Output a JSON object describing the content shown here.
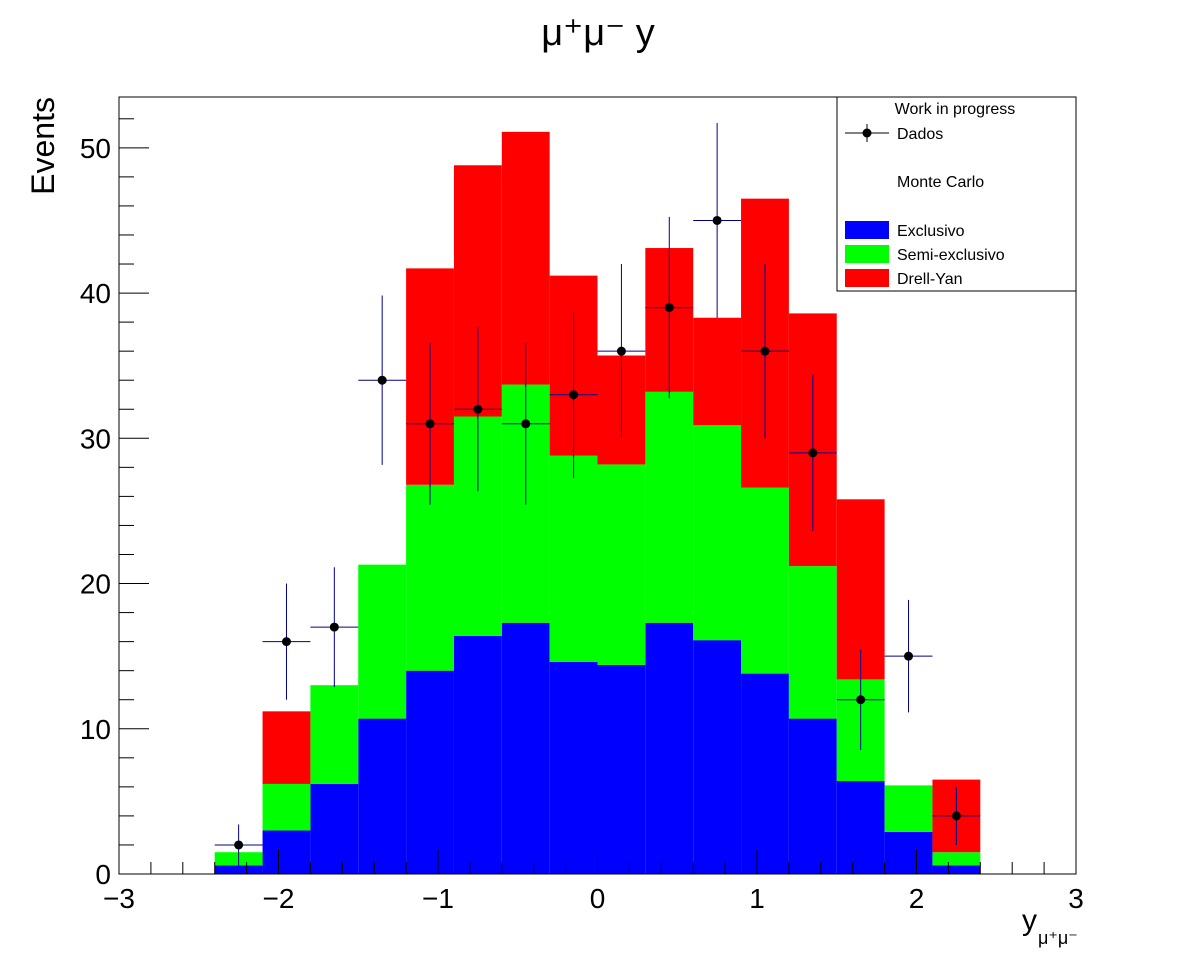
{
  "chart_data": {
    "type": "bar",
    "title": "μ⁺μ⁻ y",
    "xlabel": "y",
    "xlabel_subscript": "μ⁺μ⁻",
    "ylabel": "Events",
    "xlim": [
      -3,
      3
    ],
    "ylim": [
      0,
      53.5
    ],
    "x_ticks": [
      "−3",
      "−2",
      "−1",
      "0",
      "1",
      "2",
      "3"
    ],
    "y_ticks": [
      "0",
      "10",
      "20",
      "30",
      "40",
      "50"
    ],
    "bin_edges": [
      -2.4,
      -2.1,
      -1.8,
      -1.5,
      -1.2,
      -0.9,
      -0.6,
      -0.3,
      0.0,
      0.3,
      0.6,
      0.9,
      1.2,
      1.5,
      1.8,
      2.1,
      2.4
    ],
    "stacked": true,
    "series": [
      {
        "name": "Exclusivo",
        "color": "#0000ff",
        "values": [
          0.6,
          3.0,
          6.2,
          10.7,
          14.0,
          16.4,
          17.3,
          14.6,
          14.4,
          17.3,
          16.1,
          13.8,
          10.7,
          6.4,
          2.9,
          0.6
        ]
      },
      {
        "name": "Semi-exclusivo",
        "color": "#00ff00",
        "values": [
          0.9,
          3.2,
          6.8,
          10.6,
          12.8,
          15.1,
          16.4,
          14.2,
          13.8,
          15.9,
          14.8,
          12.8,
          10.5,
          7.0,
          3.2,
          0.9
        ]
      },
      {
        "name": "Drell-Yan",
        "color": "#ff0000",
        "values": [
          0.0,
          5.0,
          0.0,
          0.0,
          14.9,
          17.3,
          17.4,
          12.4,
          7.5,
          9.9,
          7.4,
          19.9,
          17.4,
          12.4,
          0.0,
          5.0
        ]
      }
    ],
    "data_points": {
      "name": "Dados",
      "color": "#000000",
      "errorbar_color": "#00008b",
      "x": [
        -2.25,
        -1.95,
        -1.65,
        -1.35,
        -1.05,
        -0.75,
        -0.45,
        -0.15,
        0.15,
        0.45,
        0.75,
        1.05,
        1.35,
        1.65,
        1.95,
        2.25
      ],
      "y": [
        2,
        16,
        17,
        34,
        31,
        32,
        31,
        33,
        36,
        39,
        45,
        36,
        29,
        12,
        15,
        4
      ]
    },
    "legend": {
      "position": "top-right",
      "header": "Work in progress",
      "data_label": "Dados",
      "mc_label": "Monte Carlo",
      "entries": [
        "Exclusivo",
        "Semi-exclusivo",
        "Drell-Yan"
      ]
    }
  }
}
